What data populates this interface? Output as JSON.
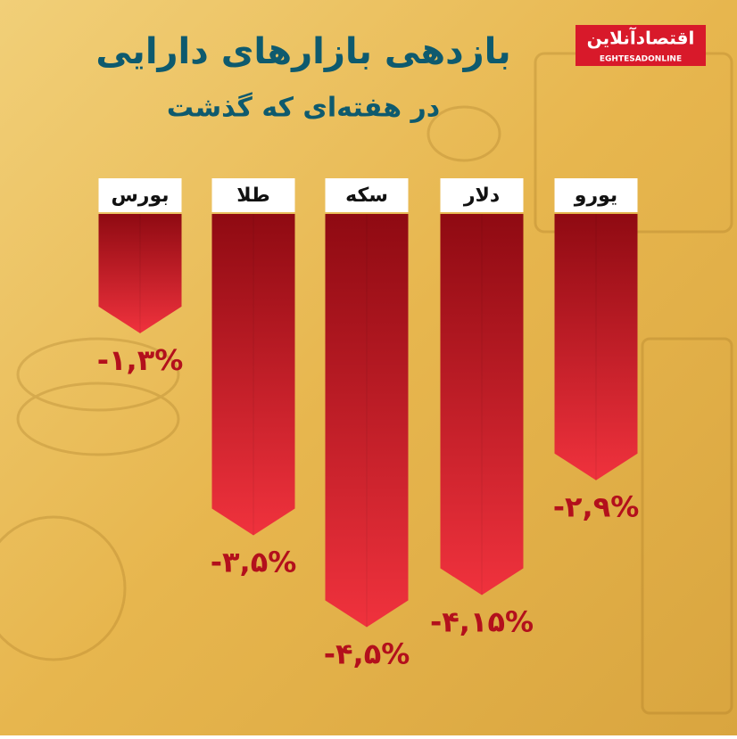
{
  "chart_data": {
    "type": "bar",
    "title": "بازدهی بازارهای دارایی",
    "subtitle": "در هفته‌ای که گذشت",
    "source": {
      "name": "اقتصادآنلاین",
      "url": "EGHTESADONLINE"
    },
    "categories": [
      "بورس",
      "طلا",
      "سکه",
      "دلار",
      "یورو"
    ],
    "values": [
      -1.3,
      -3.5,
      -4.5,
      -4.15,
      -2.9
    ],
    "value_labels": [
      "-۱,۳%",
      "-۳,۵%",
      "-۴,۵%",
      "-۴,۱۵%",
      "-۲,۹%"
    ],
    "color": "#d8192a",
    "ylim": [
      -5,
      0
    ]
  }
}
